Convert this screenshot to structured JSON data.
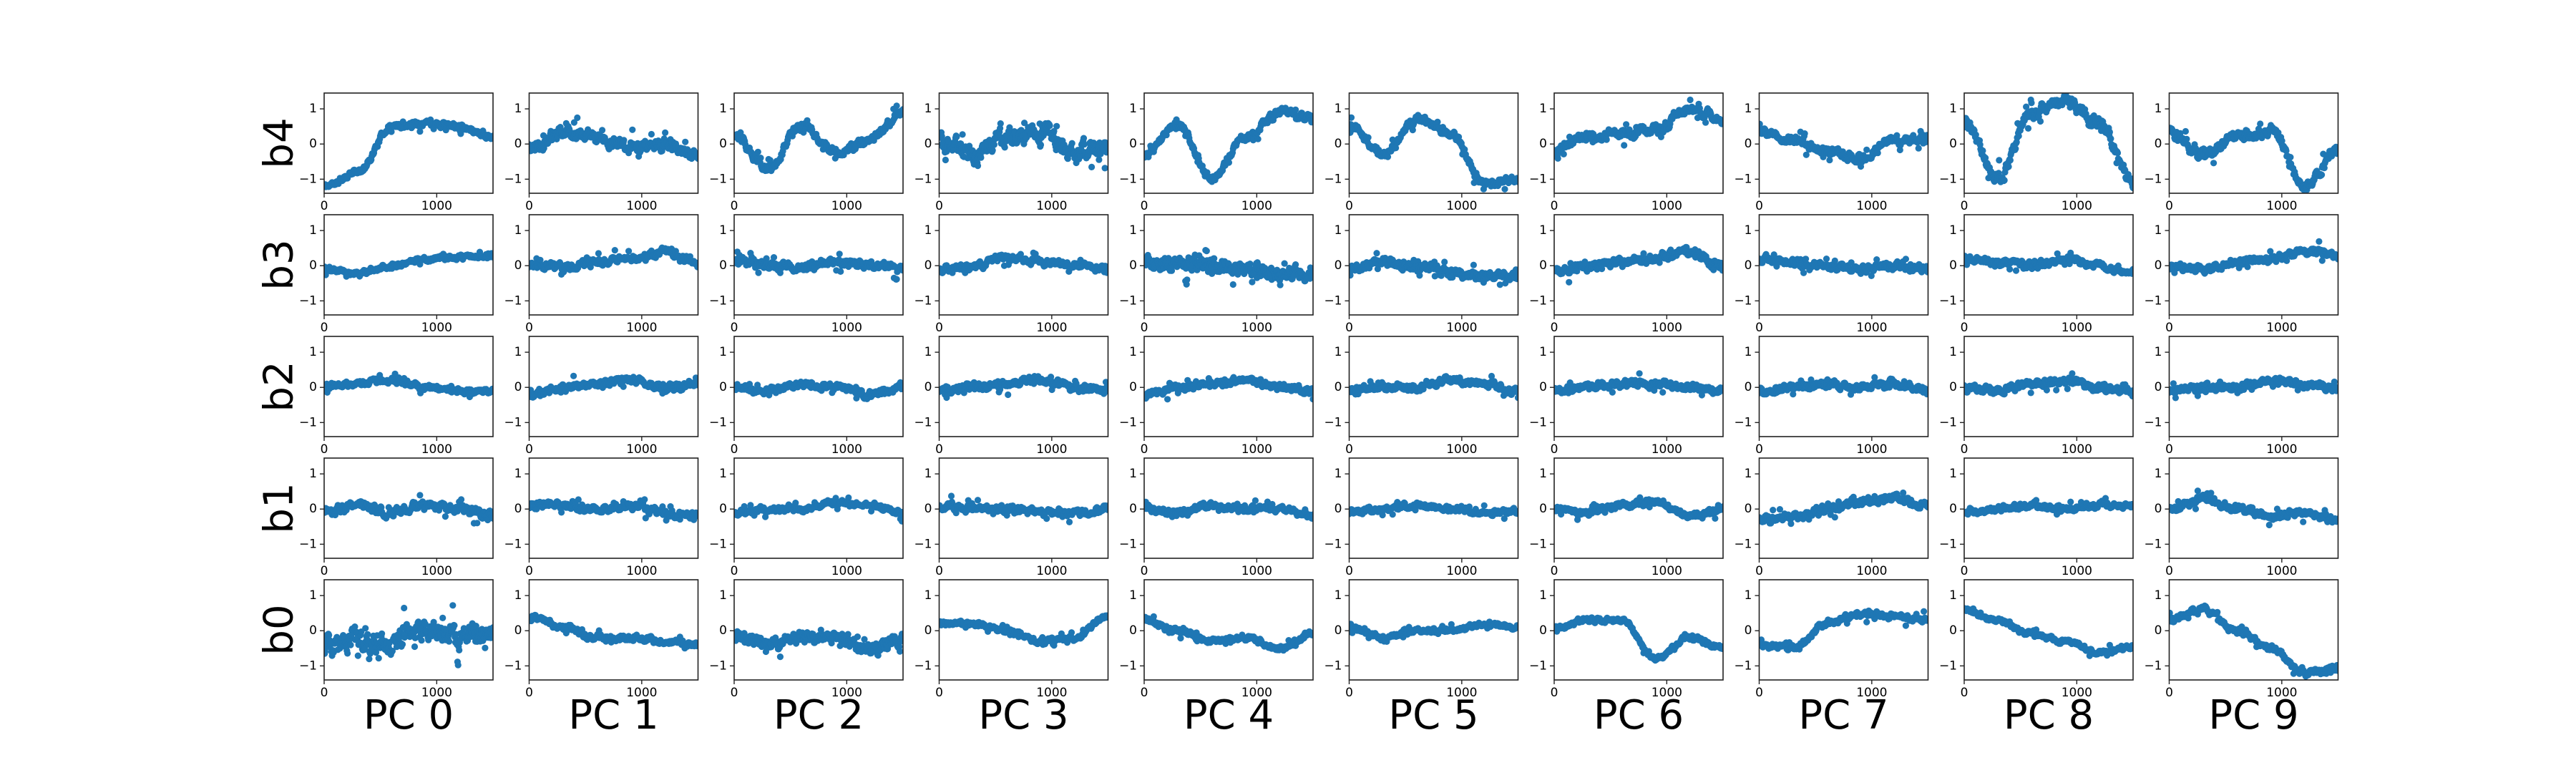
{
  "figure": {
    "row_labels": [
      "b4",
      "b3",
      "b2",
      "b1",
      "b0"
    ],
    "col_labels": [
      "PC 0",
      "PC 1",
      "PC 2",
      "PC 3",
      "PC 4",
      "PC 5",
      "PC 6",
      "PC 7",
      "PC 8",
      "PC 9"
    ]
  },
  "chart_data": {
    "type": "scatter",
    "layout": "grid of 5 rows x 10 columns of small scatter panels",
    "marker_color": "#1f77b4",
    "xlim": [
      0,
      1500
    ],
    "ylim": [
      -1.4,
      1.45
    ],
    "xticks": [
      0,
      1000
    ],
    "xtick_labels": [
      "0",
      "1000"
    ],
    "yticks": [
      1,
      0,
      -1
    ],
    "ytick_labels": [
      "1",
      "0",
      "−1"
    ],
    "grid": false,
    "n_points_per_panel": 1500,
    "x_anchor_points": [
      0,
      300,
      600,
      900,
      1200,
      1500
    ],
    "series_profiles": {
      "b4": [
        {
          "name": "PC 0",
          "y_trend": [
            -1.2,
            -0.8,
            0.5,
            0.6,
            0.5,
            0.2
          ],
          "scatter": 0.12
        },
        {
          "name": "PC 1",
          "y_trend": [
            -0.1,
            0.3,
            0.2,
            -0.1,
            0.0,
            -0.3
          ],
          "scatter": 0.25
        },
        {
          "name": "PC 2",
          "y_trend": [
            0.2,
            -0.7,
            0.5,
            -0.2,
            0.1,
            0.9
          ],
          "scatter": 0.18
        },
        {
          "name": "PC 3",
          "y_trend": [
            0.1,
            -0.4,
            0.2,
            0.3,
            -0.2,
            -0.1
          ],
          "scatter": 0.4
        },
        {
          "name": "PC 4",
          "y_trend": [
            -0.3,
            0.6,
            -1.0,
            0.2,
            0.9,
            0.7
          ],
          "scatter": 0.15
        },
        {
          "name": "PC 5",
          "y_trend": [
            0.5,
            -0.3,
            0.7,
            0.3,
            -1.1,
            -1.0
          ],
          "scatter": 0.15
        },
        {
          "name": "PC 6",
          "y_trend": [
            -0.2,
            0.2,
            0.3,
            0.4,
            1.0,
            0.7
          ],
          "scatter": 0.2
        },
        {
          "name": "PC 7",
          "y_trend": [
            0.4,
            0.1,
            -0.2,
            -0.4,
            0.1,
            0.2
          ],
          "scatter": 0.18
        },
        {
          "name": "PC 8",
          "y_trend": [
            0.6,
            -1.0,
            0.9,
            1.2,
            0.6,
            -1.1
          ],
          "scatter": 0.25
        },
        {
          "name": "PC 9",
          "y_trend": [
            0.3,
            -0.3,
            0.2,
            0.4,
            -1.2,
            -0.2
          ],
          "scatter": 0.22
        }
      ],
      "b3": [
        {
          "name": "PC 0",
          "y_trend": [
            -0.1,
            -0.2,
            0.0,
            0.2,
            0.25,
            0.3
          ],
          "scatter": 0.1
        },
        {
          "name": "PC 1",
          "y_trend": [
            0.0,
            -0.05,
            0.1,
            0.2,
            0.4,
            0.1
          ],
          "scatter": 0.15
        },
        {
          "name": "PC 2",
          "y_trend": [
            0.1,
            0.0,
            0.0,
            0.1,
            0.0,
            -0.1
          ],
          "scatter": 0.18
        },
        {
          "name": "PC 3",
          "y_trend": [
            -0.1,
            0.0,
            0.2,
            0.1,
            0.0,
            -0.1
          ],
          "scatter": 0.15
        },
        {
          "name": "PC 4",
          "y_trend": [
            0.1,
            0.0,
            0.1,
            -0.1,
            -0.2,
            -0.2
          ],
          "scatter": 0.28
        },
        {
          "name": "PC 5",
          "y_trend": [
            -0.1,
            0.1,
            0.0,
            -0.2,
            -0.3,
            -0.3
          ],
          "scatter": 0.18
        },
        {
          "name": "PC 6",
          "y_trend": [
            -0.1,
            0.0,
            0.1,
            0.2,
            0.4,
            0.0
          ],
          "scatter": 0.18
        },
        {
          "name": "PC 7",
          "y_trend": [
            0.2,
            0.1,
            0.0,
            -0.1,
            0.0,
            -0.1
          ],
          "scatter": 0.15
        },
        {
          "name": "PC 8",
          "y_trend": [
            0.2,
            0.1,
            0.0,
            0.2,
            0.0,
            -0.2
          ],
          "scatter": 0.15
        },
        {
          "name": "PC 9",
          "y_trend": [
            0.0,
            -0.1,
            0.1,
            0.2,
            0.4,
            0.3
          ],
          "scatter": 0.15
        }
      ],
      "b2": [
        {
          "name": "PC 0",
          "y_trend": [
            0.0,
            0.1,
            0.2,
            0.0,
            -0.1,
            -0.1
          ],
          "scatter": 0.12
        },
        {
          "name": "PC 1",
          "y_trend": [
            -0.2,
            0.0,
            0.1,
            0.2,
            0.0,
            0.1
          ],
          "scatter": 0.15
        },
        {
          "name": "PC 2",
          "y_trend": [
            0.0,
            -0.1,
            0.1,
            0.0,
            -0.2,
            0.0
          ],
          "scatter": 0.15
        },
        {
          "name": "PC 3",
          "y_trend": [
            -0.1,
            0.0,
            0.1,
            0.2,
            0.0,
            -0.1
          ],
          "scatter": 0.15
        },
        {
          "name": "PC 4",
          "y_trend": [
            -0.2,
            0.0,
            0.1,
            0.2,
            0.0,
            -0.1
          ],
          "scatter": 0.15
        },
        {
          "name": "PC 5",
          "y_trend": [
            -0.1,
            0.0,
            0.0,
            0.2,
            0.1,
            -0.1
          ],
          "scatter": 0.15
        },
        {
          "name": "PC 6",
          "y_trend": [
            -0.1,
            0.0,
            0.1,
            0.1,
            0.0,
            -0.1
          ],
          "scatter": 0.15
        },
        {
          "name": "PC 7",
          "y_trend": [
            -0.1,
            0.0,
            0.1,
            0.0,
            0.1,
            -0.1
          ],
          "scatter": 0.15
        },
        {
          "name": "PC 8",
          "y_trend": [
            0.0,
            -0.1,
            0.1,
            0.2,
            0.0,
            -0.1
          ],
          "scatter": 0.15
        },
        {
          "name": "PC 9",
          "y_trend": [
            -0.1,
            0.0,
            0.0,
            0.2,
            0.1,
            0.0
          ],
          "scatter": 0.15
        }
      ],
      "b1": [
        {
          "name": "PC 0",
          "y_trend": [
            -0.1,
            0.1,
            -0.1,
            0.1,
            0.0,
            -0.2
          ],
          "scatter": 0.18
        },
        {
          "name": "PC 1",
          "y_trend": [
            0.1,
            0.1,
            0.0,
            0.1,
            -0.1,
            -0.2
          ],
          "scatter": 0.15
        },
        {
          "name": "PC 2",
          "y_trend": [
            -0.1,
            0.0,
            0.0,
            0.2,
            0.1,
            -0.1
          ],
          "scatter": 0.12
        },
        {
          "name": "PC 3",
          "y_trend": [
            0.1,
            0.0,
            0.0,
            -0.1,
            -0.1,
            0.0
          ],
          "scatter": 0.15
        },
        {
          "name": "PC 4",
          "y_trend": [
            0.0,
            -0.1,
            0.1,
            0.0,
            0.0,
            -0.2
          ],
          "scatter": 0.12
        },
        {
          "name": "PC 5",
          "y_trend": [
            -0.1,
            0.0,
            0.1,
            0.0,
            -0.1,
            -0.1
          ],
          "scatter": 0.12
        },
        {
          "name": "PC 6",
          "y_trend": [
            0.0,
            -0.1,
            0.1,
            0.2,
            -0.2,
            0.0
          ],
          "scatter": 0.12
        },
        {
          "name": "PC 7",
          "y_trend": [
            -0.3,
            -0.2,
            0.0,
            0.2,
            0.3,
            0.1
          ],
          "scatter": 0.15
        },
        {
          "name": "PC 8",
          "y_trend": [
            -0.1,
            0.0,
            0.1,
            0.0,
            0.1,
            0.1
          ],
          "scatter": 0.12
        },
        {
          "name": "PC 9",
          "y_trend": [
            0.0,
            0.3,
            0.0,
            -0.2,
            -0.1,
            -0.3
          ],
          "scatter": 0.15
        }
      ],
      "b0": [
        {
          "name": "PC 0",
          "y_trend": [
            -0.4,
            -0.3,
            -0.3,
            0.0,
            -0.2,
            -0.1
          ],
          "scatter": 0.45
        },
        {
          "name": "PC 1",
          "y_trend": [
            0.4,
            0.1,
            -0.2,
            -0.2,
            -0.3,
            -0.4
          ],
          "scatter": 0.12
        },
        {
          "name": "PC 2",
          "y_trend": [
            -0.2,
            -0.4,
            -0.2,
            -0.2,
            -0.5,
            -0.3
          ],
          "scatter": 0.25
        },
        {
          "name": "PC 3",
          "y_trend": [
            0.2,
            0.2,
            0.0,
            -0.3,
            -0.2,
            0.4
          ],
          "scatter": 0.1
        },
        {
          "name": "PC 4",
          "y_trend": [
            0.3,
            0.0,
            -0.3,
            -0.2,
            -0.5,
            -0.1
          ],
          "scatter": 0.12
        },
        {
          "name": "PC 5",
          "y_trend": [
            0.1,
            -0.2,
            0.0,
            0.0,
            0.2,
            0.1
          ],
          "scatter": 0.1
        },
        {
          "name": "PC 6",
          "y_trend": [
            0.1,
            0.3,
            0.3,
            -0.8,
            -0.2,
            -0.5
          ],
          "scatter": 0.1
        },
        {
          "name": "PC 7",
          "y_trend": [
            -0.4,
            -0.5,
            0.2,
            0.5,
            0.4,
            0.3
          ],
          "scatter": 0.12
        },
        {
          "name": "PC 8",
          "y_trend": [
            0.6,
            0.3,
            -0.1,
            -0.3,
            -0.6,
            -0.5
          ],
          "scatter": 0.1
        },
        {
          "name": "PC 9",
          "y_trend": [
            0.3,
            0.6,
            0.0,
            -0.5,
            -1.2,
            -1.1
          ],
          "scatter": 0.12
        }
      ]
    }
  }
}
